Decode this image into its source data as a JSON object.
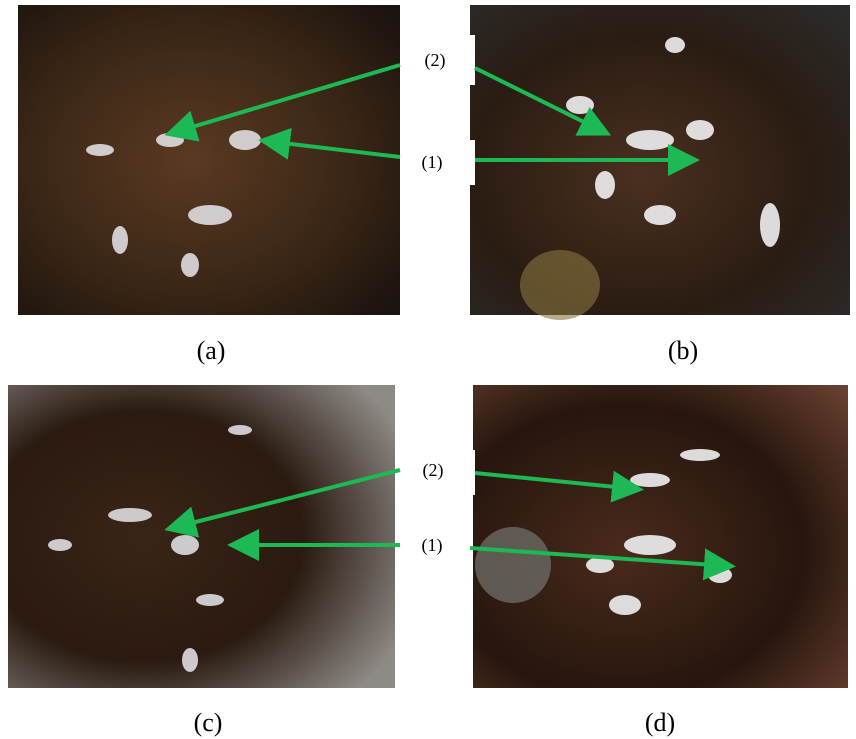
{
  "panels": [
    "(a)",
    "(b)",
    "(c)",
    "(d)"
  ],
  "callouts": {
    "top": [
      "(2)",
      "(1)"
    ],
    "bottom": [
      "(2)",
      "(1)"
    ]
  }
}
